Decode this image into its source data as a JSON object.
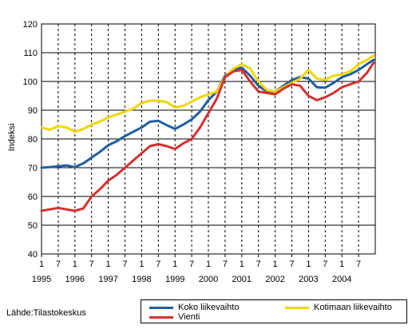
{
  "source_text": "Lähde:Tilastokeskus",
  "chart_data": {
    "type": "line",
    "ylabel": "Indeksi",
    "ylim": [
      40,
      120
    ],
    "yticks": [
      40,
      50,
      60,
      70,
      80,
      90,
      100,
      110,
      120
    ],
    "xlim": [
      1995.0,
      2005.0
    ],
    "month_ticks": [
      "1",
      "7",
      "1",
      "7",
      "1",
      "7",
      "1",
      "7",
      "1",
      "7",
      "1",
      "7",
      "1",
      "7",
      "1",
      "7",
      "1",
      "7",
      "1",
      "7"
    ],
    "year_labels": [
      "1995",
      "1996",
      "1997",
      "1998",
      "1999",
      "2000",
      "2001",
      "2002",
      "2003",
      "2004"
    ],
    "grid": true,
    "series": [
      {
        "name": "Koko liikevaihto",
        "color": "#1f5fa0",
        "x": [
          1995.0,
          1995.25,
          1995.5,
          1995.75,
          1996.0,
          1996.25,
          1996.5,
          1996.75,
          1997.0,
          1997.25,
          1997.5,
          1997.75,
          1998.0,
          1998.25,
          1998.5,
          1998.75,
          1999.0,
          1999.25,
          1999.5,
          1999.75,
          2000.0,
          2000.25,
          2000.5,
          2000.75,
          2001.0,
          2001.25,
          2001.5,
          2001.75,
          2002.0,
          2002.25,
          2002.5,
          2002.75,
          2003.0,
          2003.25,
          2003.5,
          2003.75,
          2004.0,
          2004.25,
          2004.5,
          2004.75,
          2004.95
        ],
        "values": [
          70,
          70.2,
          70.5,
          70.8,
          70.2,
          71.5,
          73.5,
          75.5,
          77.8,
          79.2,
          81,
          82.5,
          84,
          86,
          86.3,
          84.8,
          83.5,
          85,
          86.8,
          89.5,
          93.5,
          96.5,
          102,
          104,
          104.8,
          102,
          98.5,
          96.5,
          96.5,
          98.5,
          100.5,
          101.5,
          101,
          98,
          97.8,
          99.5,
          101.5,
          102.5,
          104,
          106,
          107.5
        ]
      },
      {
        "name": "Kotimaan liikevaihto",
        "color": "#f2d600",
        "x": [
          1995.0,
          1995.25,
          1995.5,
          1995.75,
          1996.0,
          1996.25,
          1996.5,
          1996.75,
          1997.0,
          1997.25,
          1997.5,
          1997.75,
          1998.0,
          1998.25,
          1998.5,
          1998.75,
          1999.0,
          1999.25,
          1999.5,
          1999.75,
          2000.0,
          2000.25,
          2000.5,
          2000.75,
          2001.0,
          2001.25,
          2001.5,
          2001.75,
          2002.0,
          2002.25,
          2002.5,
          2002.75,
          2003.0,
          2003.25,
          2003.5,
          2003.75,
          2004.0,
          2004.25,
          2004.5,
          2004.75,
          2004.95
        ],
        "values": [
          84,
          83.2,
          84.5,
          84,
          82.5,
          83.5,
          85,
          86,
          87.5,
          88.5,
          89.5,
          90.5,
          92.5,
          93.3,
          93.3,
          92.8,
          91,
          91.5,
          93,
          94.5,
          95.5,
          96.5,
          101.5,
          104.5,
          106,
          104.5,
          100,
          97,
          96.5,
          98,
          99.5,
          101,
          104,
          101,
          100.5,
          102,
          102.5,
          103.5,
          106,
          107.5,
          109
        ]
      },
      {
        "name": "Vienti",
        "color": "#d43030",
        "x": [
          1995.0,
          1995.25,
          1995.5,
          1995.75,
          1996.0,
          1996.25,
          1996.5,
          1996.75,
          1997.0,
          1997.25,
          1997.5,
          1997.75,
          1998.0,
          1998.25,
          1998.5,
          1998.75,
          1999.0,
          1999.25,
          1999.5,
          1999.75,
          2000.0,
          2000.25,
          2000.5,
          2000.75,
          2001.0,
          2001.25,
          2001.5,
          2001.75,
          2002.0,
          2002.25,
          2002.5,
          2002.75,
          2003.0,
          2003.25,
          2003.5,
          2003.75,
          2004.0,
          2004.25,
          2004.5,
          2004.75,
          2004.95
        ],
        "values": [
          55,
          55.5,
          56,
          55.5,
          55,
          55.8,
          60,
          62.5,
          65.5,
          67.5,
          70,
          72.5,
          75,
          77.5,
          78.2,
          77.5,
          76.5,
          78.5,
          80,
          84,
          89,
          94,
          101.5,
          103.5,
          104,
          100,
          96.5,
          96,
          95.5,
          97.5,
          99,
          98.5,
          95,
          93.5,
          94.5,
          96,
          98,
          99,
          100,
          103,
          106.5
        ]
      }
    ]
  }
}
